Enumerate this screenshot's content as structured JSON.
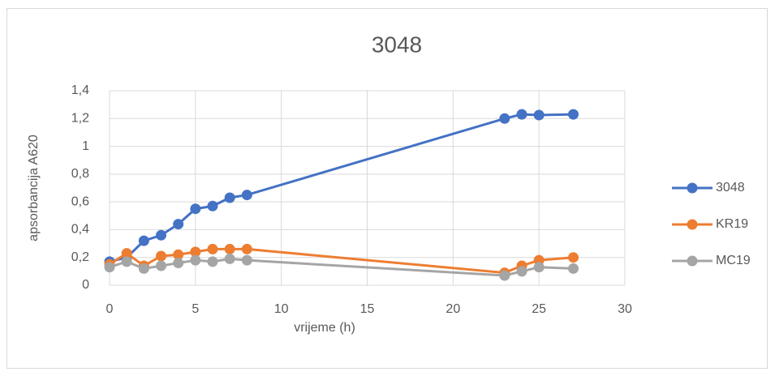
{
  "chart_data": {
    "type": "line",
    "title": "3048",
    "xlabel": "vrijeme (h)",
    "ylabel": "apsorbancija A620",
    "x": [
      0,
      1,
      2,
      3,
      4,
      5,
      6,
      7,
      8,
      23,
      24,
      25,
      27
    ],
    "series": [
      {
        "name": "3048",
        "color": "#4472c4",
        "values": [
          0.17,
          0.2,
          0.32,
          0.36,
          0.44,
          0.55,
          0.57,
          0.63,
          0.65,
          1.2,
          1.23,
          1.225,
          1.23
        ]
      },
      {
        "name": "KR19",
        "color": "#ed7d31",
        "values": [
          0.15,
          0.23,
          0.14,
          0.21,
          0.22,
          0.24,
          0.26,
          0.26,
          0.26,
          0.09,
          0.14,
          0.18,
          0.2
        ]
      },
      {
        "name": "MC19",
        "color": "#a5a5a5",
        "values": [
          0.13,
          0.17,
          0.12,
          0.14,
          0.16,
          0.18,
          0.17,
          0.19,
          0.18,
          0.07,
          0.1,
          0.13,
          0.12
        ]
      }
    ],
    "xlim": [
      0,
      30
    ],
    "xticks": [
      0,
      5,
      10,
      15,
      20,
      25,
      30
    ],
    "ylim": [
      0,
      1.4
    ],
    "yticks": [
      0,
      {
        "value": 0.2,
        "label": "0,2"
      },
      {
        "value": 0.4,
        "label": "0,4"
      },
      {
        "value": 0.6,
        "label": "0,6"
      },
      {
        "value": 0.8,
        "label": "0,8"
      },
      1,
      {
        "value": 1.2,
        "label": "1,2"
      },
      {
        "value": 1.4,
        "label": "1,4"
      }
    ],
    "grid": true,
    "legend": "right"
  }
}
